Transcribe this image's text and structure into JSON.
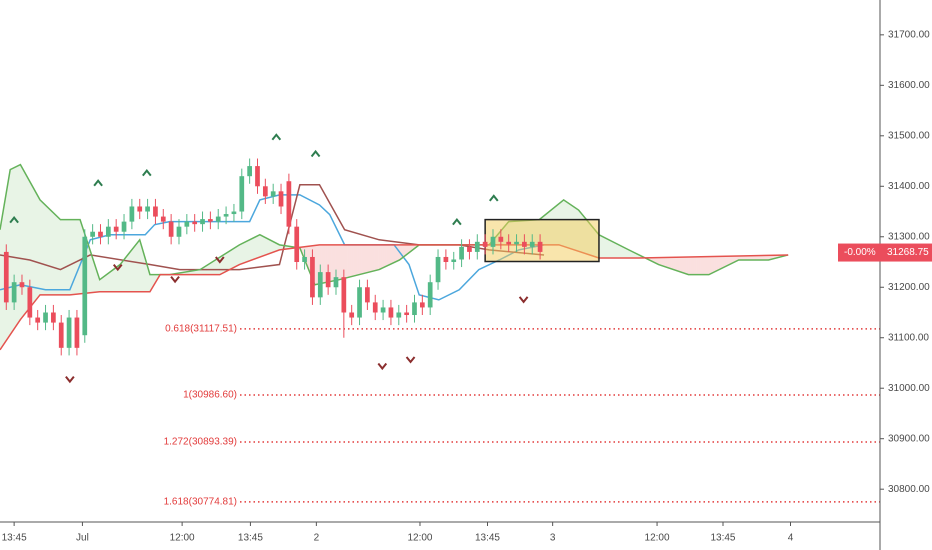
{
  "chart_data": {
    "type": "candlestick",
    "open": [
      31270,
      31170,
      31210,
      31200,
      31140,
      31130,
      31150,
      31130,
      31080,
      31140,
      31105,
      31300,
      31310,
      31300,
      31320,
      31310,
      31330,
      31360,
      31350,
      31360,
      31340,
      31330,
      31300,
      31320,
      31330,
      31325,
      31335,
      31330,
      31340,
      31345,
      31350,
      31420,
      31440,
      31400,
      31380,
      31390,
      31410,
      31320,
      31250,
      31260,
      31180,
      31230,
      31200,
      31220,
      31150,
      31140,
      31200,
      31170,
      31150,
      31160,
      31140,
      31150,
      31145,
      31170,
      31160,
      31210,
      31260,
      31250,
      31255,
      31280,
      31270,
      31290,
      31280,
      31300,
      31290,
      31285,
      31290,
      31280,
      31290
    ],
    "high": [
      31285,
      31225,
      31225,
      31215,
      31155,
      31165,
      31165,
      31145,
      31155,
      31155,
      31315,
      31325,
      31325,
      31335,
      31335,
      31345,
      31375,
      31375,
      31375,
      31375,
      31355,
      31345,
      31335,
      31345,
      31345,
      31350,
      31350,
      31355,
      31360,
      31365,
      31435,
      31455,
      31455,
      31415,
      31405,
      31405,
      31425,
      31335,
      31275,
      31275,
      31245,
      31245,
      31235,
      31235,
      31165,
      31215,
      31215,
      31185,
      31175,
      31175,
      31165,
      31165,
      31185,
      31185,
      31225,
      31275,
      31275,
      31270,
      31295,
      31295,
      31305,
      31305,
      31315,
      31315,
      31305,
      31305,
      31305,
      31305,
      31305
    ],
    "low": [
      31155,
      31155,
      31185,
      31125,
      31115,
      31115,
      31115,
      31065,
      31065,
      31065,
      31090,
      31285,
      31285,
      31285,
      31295,
      31295,
      31315,
      31335,
      31335,
      31325,
      31315,
      31285,
      31285,
      31305,
      31310,
      31310,
      31315,
      31315,
      31325,
      31330,
      31335,
      31405,
      31385,
      31365,
      31365,
      31345,
      31305,
      31235,
      31235,
      31165,
      31165,
      31185,
      31185,
      31100,
      31125,
      31125,
      31155,
      31135,
      31135,
      31125,
      31125,
      31130,
      31130,
      31145,
      31145,
      31195,
      31235,
      31235,
      31240,
      31255,
      31255,
      31265,
      31265,
      31275,
      31270,
      31270,
      31265,
      31265,
      31255
    ],
    "close": [
      31170,
      31210,
      31200,
      31140,
      31130,
      31150,
      31130,
      31080,
      31140,
      31080,
      31300,
      31310,
      31300,
      31320,
      31310,
      31330,
      31360,
      31350,
      31360,
      31340,
      31330,
      31300,
      31320,
      31330,
      31325,
      31335,
      31330,
      31340,
      31345,
      31350,
      31420,
      31440,
      31400,
      31380,
      31390,
      31360,
      31320,
      31250,
      31260,
      31180,
      31230,
      31200,
      31220,
      31150,
      31140,
      31200,
      31170,
      31150,
      31160,
      31140,
      31150,
      31145,
      31170,
      31160,
      31210,
      31260,
      31250,
      31255,
      31280,
      31270,
      31290,
      31280,
      31300,
      31290,
      31285,
      31290,
      31280,
      31290,
      31270
    ],
    "up_color": "#53b987",
    "down_color": "#eb4d5c",
    "lines": [
      {
        "color": "#4ca7dd",
        "x": [
          -0.8,
          1.8,
          5.0,
          8.1,
          10.7,
          13.2,
          17.7,
          18.9,
          20.8,
          31.0,
          32.3,
          34.8,
          37.4,
          39.9,
          41.2,
          43.1,
          49.4,
          51.3,
          52.6,
          55.1,
          57.7,
          60.2,
          62.8,
          65.3,
          68.5
        ],
        "values": [
          31195,
          31205,
          31195,
          31195,
          31294,
          31304,
          31304,
          31324,
          31330,
          31330,
          31373,
          31383,
          31383,
          31363,
          31344,
          31284,
          31284,
          31245,
          31185,
          31175,
          31195,
          31235,
          31254,
          31274,
          31284
        ]
      },
      {
        "color": "#a0524f",
        "x": [
          -0.8,
          3.0,
          6.9,
          10.7,
          18.3,
          22.1,
          29.7,
          34.8,
          37.4,
          39.9,
          43.1,
          47.5,
          52.6,
          57.7,
          61.5,
          68.5
        ],
        "values": [
          31264,
          31254,
          31235,
          31264,
          31245,
          31235,
          31235,
          31245,
          31403,
          31403,
          31314,
          31294,
          31284,
          31284,
          31274,
          31264
        ]
      },
      {
        "color": "#64b25a",
        "x": [
          -0.8,
          0.5,
          1.8,
          4.3,
          6.9,
          9.4,
          11.9,
          14.5,
          17.0,
          18.3,
          20.8,
          24.7,
          29.7,
          32.3,
          34.8,
          37.4,
          39.3,
          42.4,
          47.5,
          50.1,
          52.6,
          57.7,
          61.5,
          64.0,
          67.9,
          71.0,
          72.9,
          75.5,
          79.3,
          83.1,
          86.9,
          89.5,
          93.3,
          97.1,
          99.6
        ],
        "values": [
          31314,
          31433,
          31443,
          31373,
          31334,
          31334,
          31215,
          31245,
          31294,
          31225,
          31225,
          31235,
          31284,
          31304,
          31284,
          31278,
          31205,
          31215,
          31235,
          31254,
          31284,
          31284,
          31284,
          31330,
          31334,
          31373,
          31353,
          31304,
          31274,
          31245,
          31225,
          31225,
          31254,
          31254,
          31264
        ]
      },
      {
        "color": "#e4534e",
        "x": [
          -0.8,
          1.8,
          4.3,
          8.1,
          11.9,
          18.3,
          19.6,
          27.2,
          29.7,
          34.8,
          39.9,
          47.5,
          52.6,
          61.5,
          70.4,
          75.5,
          80.6,
          99.6
        ],
        "values": [
          31076,
          31136,
          31185,
          31185,
          31191,
          31191,
          31225,
          31225,
          31245,
          31274,
          31284,
          31284,
          31284,
          31284,
          31284,
          31258,
          31258,
          31264
        ]
      }
    ],
    "fib_levels": [
      {
        "value": 31117.51,
        "label": "0.618(31117.51)"
      },
      {
        "value": 30986.6,
        "label": "1(30986.60)"
      },
      {
        "value": 30893.39,
        "label": "1.272(30893.39)"
      },
      {
        "value": 30774.81,
        "label": "1.618(30774.81)"
      }
    ],
    "fib_color": "#e23b3b",
    "up_markers": {
      "x": [
        1.0,
        11.7,
        17.9,
        34.4,
        39.4,
        57.4,
        62.1
      ],
      "y": [
        31334,
        31407,
        31427,
        31498,
        31465,
        31330,
        31377
      ]
    },
    "down_markers": {
      "x": [
        8.1,
        14.2,
        21.5,
        27.2,
        47.9,
        51.5,
        65.9
      ],
      "y": [
        31017,
        31239,
        31215,
        31254,
        31043,
        31056,
        31175
      ]
    },
    "box": {
      "x": [
        61,
        75.5
      ],
      "y": [
        31251,
        31334
      ]
    },
    "last_price": 31268.75,
    "last_change_label": "-0.00%",
    "xlim": [
      -0.8,
      111.3
    ],
    "ylim": [
      30735,
      31769
    ],
    "xticks": [
      {
        "value": 1.0,
        "label": "13:45"
      },
      {
        "value": 9.7,
        "label": "Jul"
      },
      {
        "value": 22.4,
        "label": "12:00"
      },
      {
        "value": 31.1,
        "label": "13:45"
      },
      {
        "value": 39.5,
        "label": "2"
      },
      {
        "value": 52.7,
        "label": "12:00"
      },
      {
        "value": 61.3,
        "label": "13:45"
      },
      {
        "value": 69.6,
        "label": "3"
      },
      {
        "value": 82.9,
        "label": "12:00"
      },
      {
        "value": 91.3,
        "label": "13:45"
      },
      {
        "value": 99.9,
        "label": "4"
      }
    ],
    "yticks": [
      {
        "value": 30800,
        "label": "30800.00"
      },
      {
        "value": 30900,
        "label": "30900.00"
      },
      {
        "value": 31000,
        "label": "31000.00"
      },
      {
        "value": 31100,
        "label": "31100.00"
      },
      {
        "value": 31200,
        "label": "31200.00"
      },
      {
        "value": 31300,
        "label": "31300.00"
      },
      {
        "value": 31400,
        "label": "31400.00"
      },
      {
        "value": 31500,
        "label": "31500.00"
      },
      {
        "value": 31600,
        "label": "31600.00"
      },
      {
        "value": 31700,
        "label": "31700.00"
      }
    ]
  }
}
